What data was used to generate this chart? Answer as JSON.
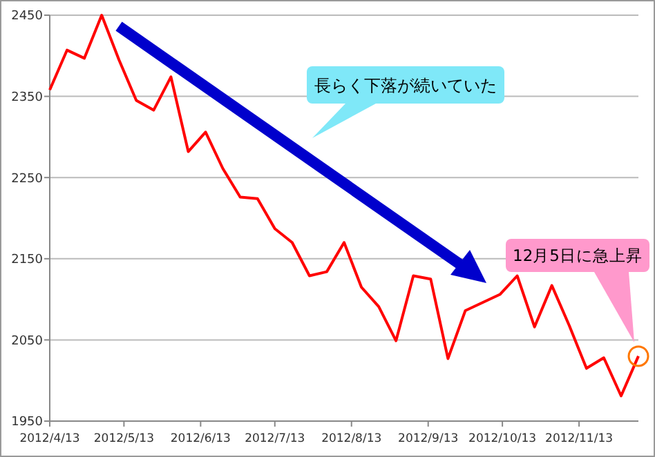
{
  "chart_data": {
    "type": "line",
    "x": [
      "2012-04-13",
      "2012-04-20",
      "2012-04-27",
      "2012-05-04",
      "2012-05-11",
      "2012-05-18",
      "2012-05-25",
      "2012-06-01",
      "2012-06-08",
      "2012-06-15",
      "2012-06-22",
      "2012-06-29",
      "2012-07-06",
      "2012-07-13",
      "2012-07-20",
      "2012-07-27",
      "2012-08-03",
      "2012-08-10",
      "2012-08-17",
      "2012-08-24",
      "2012-08-31",
      "2012-09-07",
      "2012-09-14",
      "2012-09-21",
      "2012-09-28",
      "2012-10-05",
      "2012-10-12",
      "2012-10-19",
      "2012-10-26",
      "2012-11-02",
      "2012-11-09",
      "2012-11-16",
      "2012-11-23",
      "2012-11-30",
      "2012-12-07"
    ],
    "series": [
      {
        "color": "#ff0000",
        "values": [
          2358,
          2407,
          2397,
          2450,
          2395,
          2345,
          2333,
          2374,
          2282,
          2306,
          2261,
          2226,
          2224,
          2187,
          2170,
          2129,
          2134,
          2170,
          2115,
          2091,
          2049,
          2129,
          2125,
          2027,
          2086,
          2096,
          2106,
          2129,
          2066,
          2117,
          2068,
          2015,
          2028,
          1981,
          2030
        ]
      }
    ],
    "xlim": [
      "2012-04-13",
      "2012-12-07"
    ],
    "xticks": [
      {
        "value": "2012-04-13",
        "label": "2012/4/13"
      },
      {
        "value": "2012-05-13",
        "label": "2012/5/13"
      },
      {
        "value": "2012-06-13",
        "label": "2012/6/13"
      },
      {
        "value": "2012-07-13",
        "label": "2012/7/13"
      },
      {
        "value": "2012-08-13",
        "label": "2012/8/13"
      },
      {
        "value": "2012-09-13",
        "label": "2012/9/13"
      },
      {
        "value": "2012-10-13",
        "label": "2012/10/13"
      },
      {
        "value": "2012-11-13",
        "label": "2012/11/13"
      }
    ],
    "ylim": [
      1950,
      2450
    ],
    "yticks": [
      1950,
      2050,
      2150,
      2250,
      2350,
      2450
    ],
    "grid": "y",
    "marker": "none",
    "line_style": "solid",
    "annotations": [
      "長らく下落が続いていた",
      "12月5日に急上昇"
    ]
  }
}
